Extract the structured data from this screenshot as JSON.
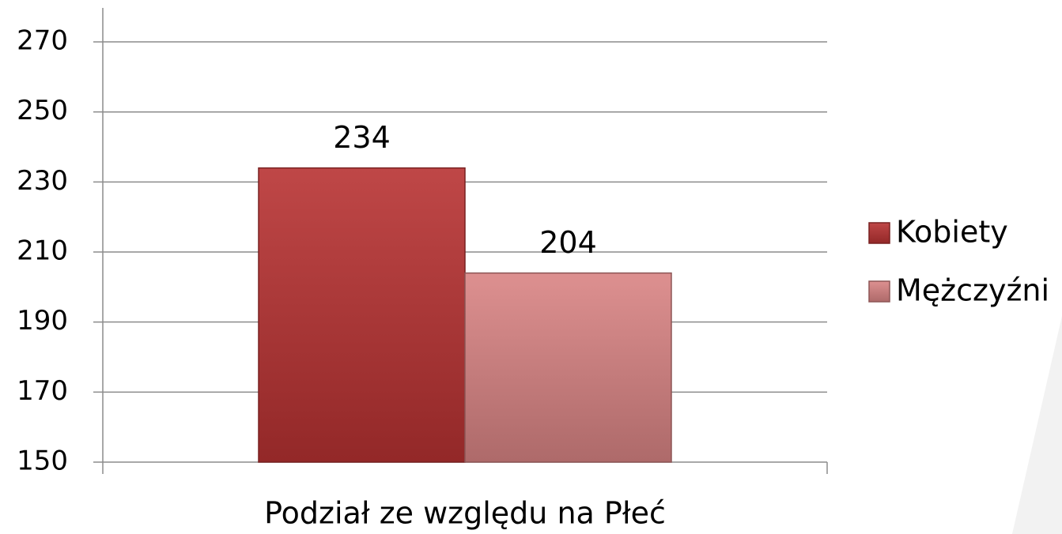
{
  "chart_data": {
    "type": "bar",
    "categories": [
      "Podział ze względu na Płeć"
    ],
    "series": [
      {
        "name": "Kobiety",
        "color": "#b83232",
        "values": [
          234
        ]
      },
      {
        "name": "Mężczyźni",
        "color": "#d98484",
        "values": [
          204
        ]
      }
    ],
    "ylim": [
      150,
      280
    ],
    "yticks": [
      150,
      170,
      190,
      210,
      230,
      250,
      270
    ],
    "grid": true,
    "legend": "right"
  }
}
